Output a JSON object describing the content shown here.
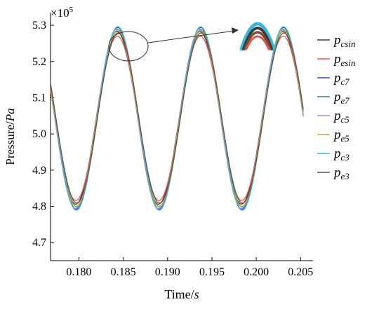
{
  "chart_data": {
    "type": "line",
    "xlabel": "Time/s",
    "ylabel": "Pressure/Pa",
    "ylabel_parts": {
      "prefix": "Pressure/",
      "unit": "Pa"
    },
    "xlabel_parts": {
      "prefix": "Time/",
      "unit": "s"
    },
    "y_multiplier": {
      "base": "×10",
      "exponent": "5"
    },
    "x_ticks": [
      "0.180",
      "0.185",
      "0.190",
      "0.195",
      "0.200",
      "0.205"
    ],
    "y_ticks": [
      "4.7",
      "4.8",
      "4.9",
      "5.0",
      "5.1",
      "5.2",
      "5.3"
    ],
    "xlim": [
      0.1768,
      0.2064
    ],
    "ylim": [
      4.65,
      5.335
    ],
    "grid": false,
    "legend_position": "right",
    "x_start": 0.1768,
    "x_end": 0.2053,
    "period": 0.00935,
    "peak_time": 0.1843,
    "inset": "zoom on the first peak near t = 0.1843 s, arrow pointing to an enlarged view of the peak curves",
    "series": [
      {
        "name_main": "p",
        "name_sub": "csin",
        "color": "#3a3a3a",
        "max": 5.283,
        "min": 4.806
      },
      {
        "name_main": "p",
        "name_sub": "esin",
        "color": "#e0594a",
        "max": 5.27,
        "min": 4.816
      },
      {
        "name_main": "p",
        "name_sub": "c7",
        "color": "#1f4fd8",
        "max": 5.294,
        "min": 4.792
      },
      {
        "name_main": "p",
        "name_sub": "e7",
        "color": "#2e8b6e",
        "max": 5.288,
        "min": 4.798
      },
      {
        "name_main": "p",
        "name_sub": "c5",
        "color": "#9b8fe0",
        "max": 5.29,
        "min": 4.794
      },
      {
        "name_main": "p",
        "name_sub": "e5",
        "color": "#d1a62a",
        "max": 5.286,
        "min": 4.8
      },
      {
        "name_main": "p",
        "name_sub": "c3",
        "color": "#3ab7d8",
        "max": 5.296,
        "min": 4.789
      },
      {
        "name_main": "p",
        "name_sub": "e3",
        "color": "#7a4a3a",
        "max": 5.279,
        "min": 4.809
      }
    ]
  }
}
